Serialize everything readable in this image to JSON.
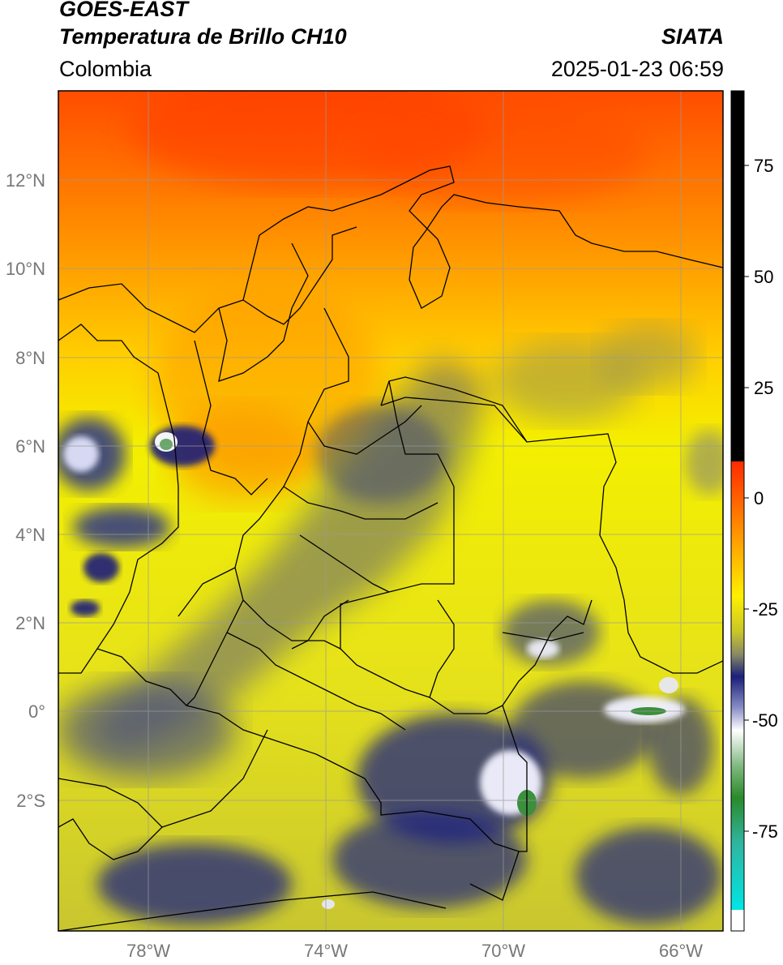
{
  "header": {
    "satellite": "GOES-EAST",
    "product": "Temperatura de Brillo CH10",
    "region": "Colombia",
    "agency": "SIATA",
    "datetime": "2025-01-23 06:59"
  },
  "axes": {
    "lat_labels": [
      "12°N",
      "10°N",
      "8°N",
      "6°N",
      "4°N",
      "2°N",
      "0°",
      "2°S"
    ],
    "lon_labels": [
      "78°W",
      "74°W",
      "70°W",
      "66°W"
    ]
  },
  "colorbar": {
    "ticks": [
      "75",
      "50",
      "25",
      "0",
      "-25",
      "-50",
      "-75"
    ],
    "colors": {
      "top": "#000000",
      "warm_red": "#ff2a00",
      "orange": "#ff9900",
      "yellow": "#ffee00",
      "olive": "#a9a84a",
      "navy": "#1a1f7a",
      "white": "#ffffff",
      "green": "#2a8a2a",
      "cyan": "#00dede"
    }
  }
}
